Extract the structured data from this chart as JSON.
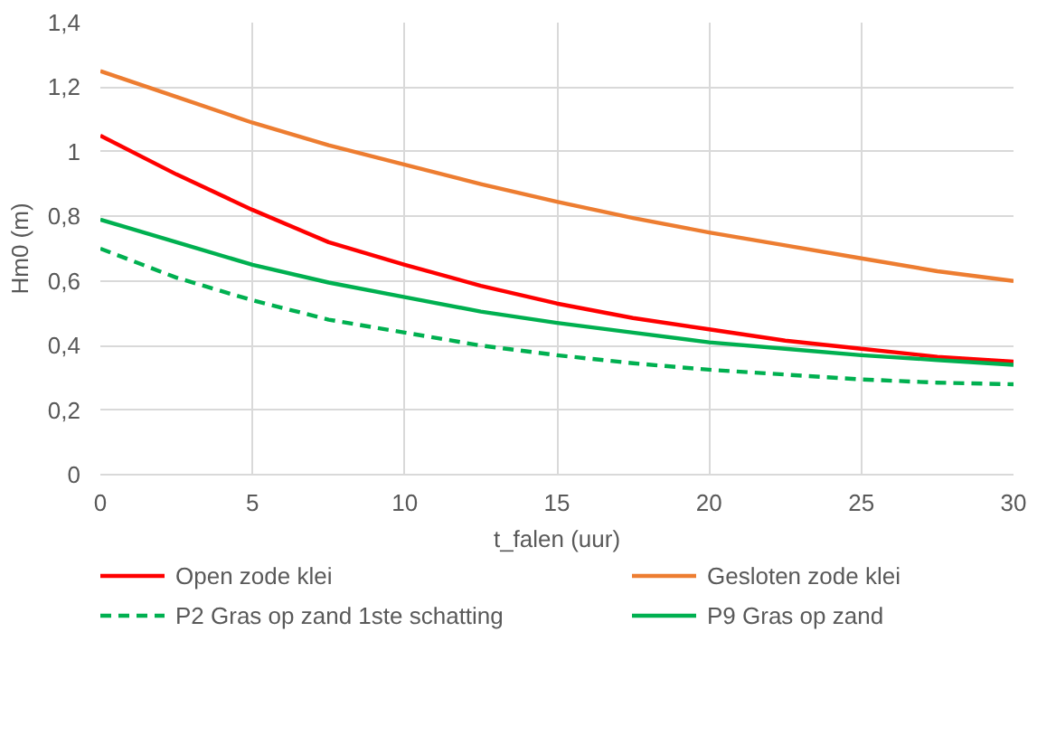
{
  "chart_data": {
    "type": "line",
    "xlabel": "t_falen (uur)",
    "ylabel": "Hm0 (m)",
    "x": [
      0,
      2.5,
      5,
      7.5,
      10,
      12.5,
      15,
      17.5,
      20,
      22.5,
      25,
      27.5,
      30
    ],
    "xlim": [
      0,
      30
    ],
    "xticks": [
      0,
      5,
      10,
      15,
      20,
      25,
      30
    ],
    "ylim": [
      0,
      1.4
    ],
    "yticks": [
      0,
      {
        "value": 0.2,
        "label": "0,2"
      },
      {
        "value": 0.4,
        "label": "0,4"
      },
      {
        "value": 0.6,
        "label": "0,6"
      },
      {
        "value": 0.8,
        "label": "0,8"
      },
      1,
      {
        "value": 1.2,
        "label": "1,2"
      },
      {
        "value": 1.4,
        "label": "1,4"
      }
    ],
    "grid": true,
    "legend": "bottom",
    "line_style": "solid",
    "series": [
      {
        "name": "Open zode klei",
        "color": "#ff0000",
        "values": [
          1.05,
          0.93,
          0.82,
          0.72,
          0.65,
          0.585,
          0.53,
          0.485,
          0.45,
          0.415,
          0.39,
          0.365,
          0.35
        ]
      },
      {
        "name": "Gesloten zode klei",
        "color": "#ed7d31",
        "values": [
          1.25,
          1.17,
          1.09,
          1.02,
          0.96,
          0.9,
          0.845,
          0.795,
          0.75,
          0.71,
          0.67,
          0.63,
          0.6
        ]
      },
      {
        "name": "P2 Gras op zand 1ste schatting",
        "color": "#00b050",
        "line_style": "dashed",
        "values": [
          0.7,
          0.61,
          0.54,
          0.48,
          0.44,
          0.4,
          0.37,
          0.345,
          0.325,
          0.31,
          0.295,
          0.285,
          0.28
        ]
      },
      {
        "name": "P9 Gras op zand",
        "color": "#00b050",
        "values": [
          0.79,
          0.72,
          0.65,
          0.595,
          0.55,
          0.505,
          0.47,
          0.44,
          0.41,
          0.39,
          0.37,
          0.355,
          0.34
        ]
      }
    ]
  }
}
